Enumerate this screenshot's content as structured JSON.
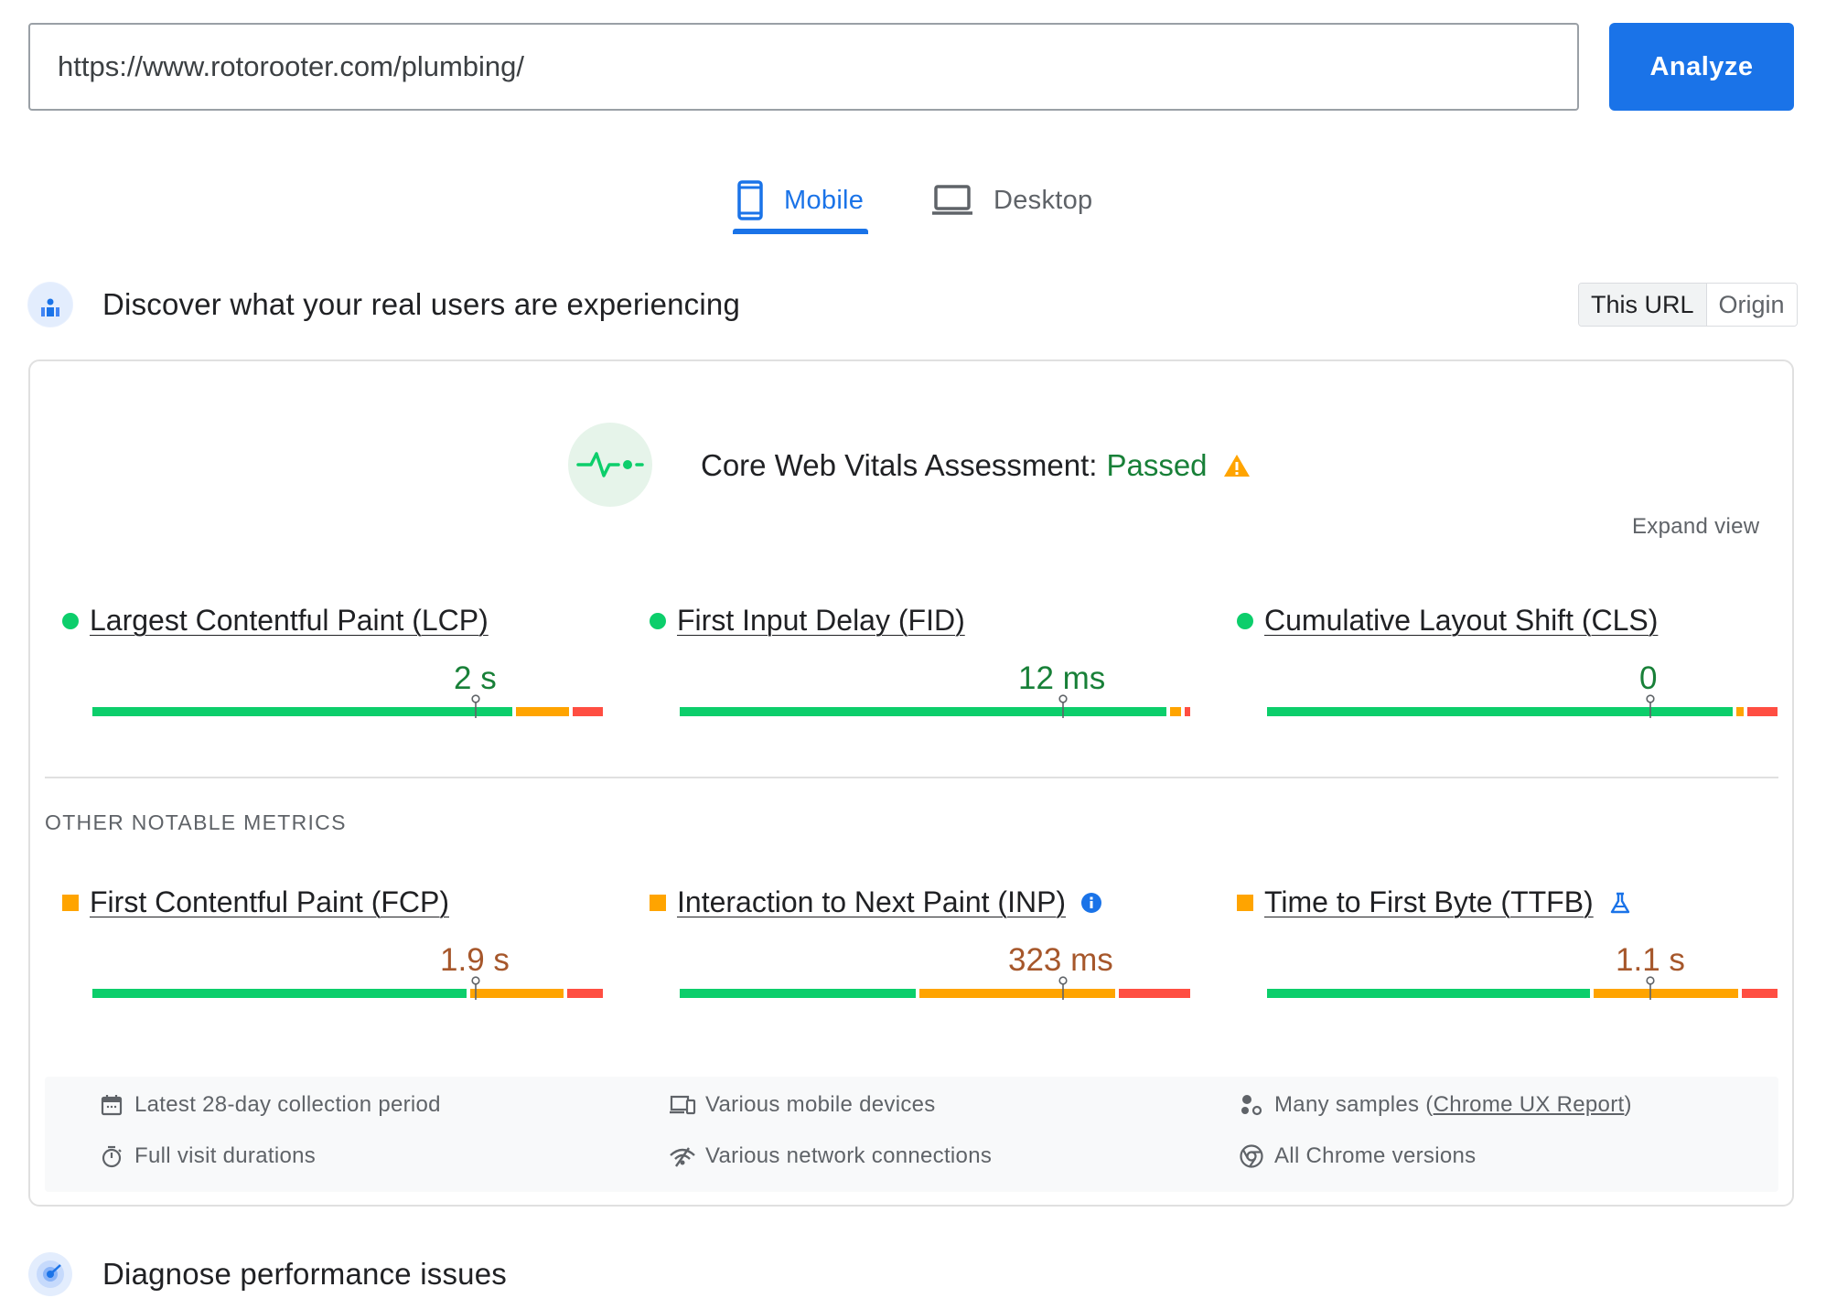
{
  "search": {
    "url_value": "https://www.rotorooter.com/plumbing/",
    "analyze_label": "Analyze"
  },
  "tabs": [
    {
      "label": "Mobile",
      "icon": "smartphone-icon",
      "active": true
    },
    {
      "label": "Desktop",
      "icon": "laptop-icon",
      "active": false
    }
  ],
  "field_section": {
    "title": "Discover what your real users are experiencing",
    "icon": "users-chart-icon",
    "toggle": {
      "this_url": "This URL",
      "origin": "Origin",
      "selected": "This URL"
    }
  },
  "assessment": {
    "label": "Core Web Vitals Assessment:",
    "status": "Passed",
    "status_color": "#188038",
    "warning_icon": "warning-icon",
    "expand_label": "Expand view"
  },
  "core_metrics": [
    {
      "name": "Largest Contentful Paint (LCP)",
      "value": "2 s",
      "rating": "good",
      "distribution": {
        "good": 0.83,
        "needs_improvement": 0.11,
        "poor": 0.06
      },
      "marker": 0.75
    },
    {
      "name": "First Input Delay (FID)",
      "value": "12 ms",
      "rating": "good",
      "distribution": {
        "good": 0.96,
        "needs_improvement": 0.03,
        "poor": 0.01
      },
      "marker": 0.75
    },
    {
      "name": "Cumulative Layout Shift (CLS)",
      "value": "0",
      "rating": "good",
      "distribution": {
        "good": 0.92,
        "needs_improvement": 0.02,
        "poor": 0.06
      },
      "marker": 0.75
    }
  ],
  "other_metrics": {
    "heading": "OTHER NOTABLE METRICS",
    "items": [
      {
        "name": "First Contentful Paint (FCP)",
        "value": "1.9 s",
        "rating": "needs-improvement",
        "distribution": {
          "good": 0.74,
          "needs_improvement": 0.19,
          "poor": 0.07
        },
        "marker": 0.75
      },
      {
        "name": "Interaction to Next Paint (INP)",
        "value": "323 ms",
        "rating": "needs-improvement",
        "distribution": {
          "good": 0.47,
          "needs_improvement": 0.39,
          "poor": 0.14
        },
        "marker": 0.75,
        "extra_icon": "info-icon"
      },
      {
        "name": "Time to First Byte (TTFB)",
        "value": "1.1 s",
        "rating": "needs-improvement",
        "distribution": {
          "good": 0.64,
          "needs_improvement": 0.29,
          "poor": 0.07
        },
        "marker": 0.75,
        "extra_icon": "flask-icon"
      }
    ]
  },
  "info": {
    "collection_period": "Latest 28-day collection period",
    "devices": "Various mobile devices",
    "samples_prefix": "Many samples (",
    "samples_link": "Chrome UX Report",
    "samples_suffix": ")",
    "durations": "Full visit durations",
    "network": "Various network connections",
    "chrome_versions": "All Chrome versions"
  },
  "diagnose_section": {
    "title": "Diagnose performance issues",
    "icon": "lab-diagnose-icon"
  },
  "colors": {
    "accent": "#1a73e8",
    "good": "#0cce6b",
    "needs_improvement": "#ffa400",
    "poor": "#ff4e42"
  }
}
